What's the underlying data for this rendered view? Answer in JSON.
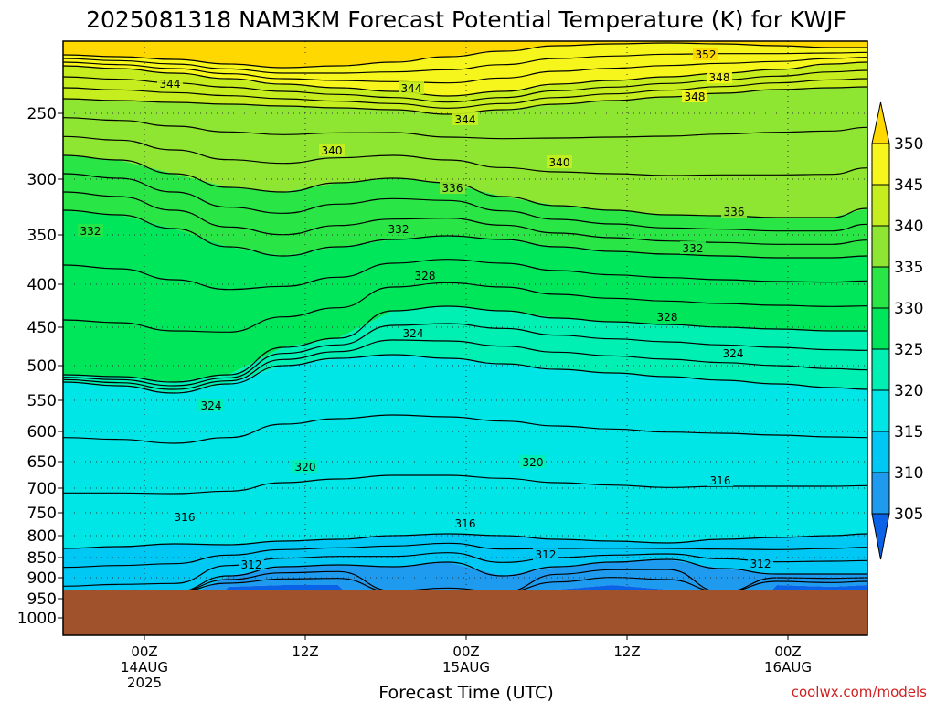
{
  "chart_data": {
    "type": "heatmap",
    "title": "2025081318 NAM3KM Forecast Potential Temperature (K) for KWJF",
    "xlabel": "Forecast Time (UTC)",
    "ylabel": "",
    "credit": "coolwx.com/models",
    "y_ticks": [
      "250",
      "300",
      "350",
      "400",
      "450",
      "500",
      "550",
      "600",
      "650",
      "700",
      "750",
      "800",
      "850",
      "900",
      "950",
      "1000"
    ],
    "x_ticks": [
      {
        "line1": "00Z",
        "line2": "14AUG",
        "line3": "2025"
      },
      {
        "line1": "12Z",
        "line2": "",
        "line3": ""
      },
      {
        "line1": "00Z",
        "line2": "15AUG",
        "line3": ""
      },
      {
        "line1": "12Z",
        "line2": "",
        "line3": ""
      },
      {
        "line1": "00Z",
        "line2": "16AUG",
        "line3": ""
      }
    ],
    "colorbar": {
      "levels": [
        "305",
        "310",
        "315",
        "320",
        "325",
        "330",
        "335",
        "340",
        "345",
        "350"
      ],
      "colors": [
        "#0a62e6",
        "#1e9bef",
        "#00c8f5",
        "#00e6e6",
        "#00f0b4",
        "#00e65a",
        "#29e646",
        "#8ee632",
        "#c6ee1e",
        "#f6f61c",
        "#ffd800"
      ]
    },
    "contour_labels": [
      "352",
      "348",
      "344",
      "344",
      "348",
      "344",
      "340",
      "340",
      "336",
      "336",
      "332",
      "332",
      "332",
      "328",
      "328",
      "324",
      "324",
      "324",
      "320",
      "320",
      "316",
      "316",
      "316",
      "312",
      "312",
      "312"
    ],
    "ground_color": "#a0522d"
  }
}
